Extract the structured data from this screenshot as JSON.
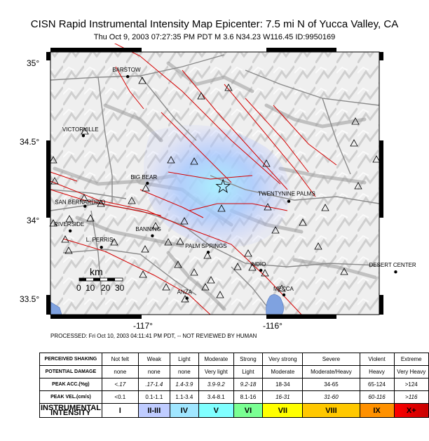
{
  "title": "CISN Rapid Instrumental Intensity Map Epicenter: 7.5 mi N of Yucca Valley, CA",
  "subtitle": "Thu Oct  9, 2003 07:27:35 PM PDT   M 3.6   N34.23 W116.45    ID:9950169",
  "processed": "PROCESSED: Fri Oct 10, 2003 04:11:41 PM PDT, -- NOT REVIEWED BY HUMAN",
  "map": {
    "lat_labels": [
      "35°",
      "34.5°",
      "34°",
      "33.5°"
    ],
    "lon_labels": [
      "-117°",
      "-116°"
    ],
    "cities": [
      {
        "name": "BARSTOW",
        "lon": -117.03,
        "lat": 34.9
      },
      {
        "name": "VICTORVILLE",
        "lon": -117.3,
        "lat": 34.54
      },
      {
        "name": "BIG BEAR",
        "lon": -116.91,
        "lat": 34.25
      },
      {
        "name": "SAN BERNARDINO",
        "lon": -117.29,
        "lat": 34.11
      },
      {
        "name": "TWENTYNINE PALMS",
        "lon": -116.05,
        "lat": 34.14
      },
      {
        "name": "RIVERSIDE",
        "lon": -117.38,
        "lat": 33.96
      },
      {
        "name": "BANNING",
        "lon": -116.88,
        "lat": 33.93
      },
      {
        "name": "L. PERRIS",
        "lon": -117.19,
        "lat": 33.86
      },
      {
        "name": "PALM SPRINGS",
        "lon": -116.54,
        "lat": 33.83
      },
      {
        "name": "INDIO",
        "lon": -116.22,
        "lat": 33.72
      },
      {
        "name": "DESERT CENTER",
        "lon": -115.4,
        "lat": 33.71
      },
      {
        "name": "MECCA",
        "lon": -116.08,
        "lat": 33.57
      },
      {
        "name": "ANZA",
        "lon": -116.67,
        "lat": 33.55
      }
    ],
    "epicenter": {
      "lon": -116.45,
      "lat": 34.23,
      "label": "star"
    },
    "scale": {
      "unit": "km",
      "ticks": [
        "0",
        "10",
        "20",
        "30"
      ]
    }
  },
  "legend": {
    "rows": [
      {
        "key": "perceived",
        "header": "PERCEIVED SHAKING",
        "cells": [
          "Not felt",
          "Weak",
          "Light",
          "Moderate",
          "Strong",
          "Very strong",
          "Severe",
          "Violent",
          "Extreme"
        ]
      },
      {
        "key": "damage",
        "header": "POTENTIAL DAMAGE",
        "cells": [
          "none",
          "none",
          "none",
          "Very light",
          "Light",
          "Moderate",
          "Moderate/Heavy",
          "Heavy",
          "Very Heavy"
        ]
      },
      {
        "key": "acc",
        "header": "PEAK ACC.(%g)",
        "cells": [
          "<.17",
          ".17-1.4",
          "1.4-3.9",
          "3.9-9.2",
          "9.2-18",
          "18-34",
          "34-65",
          "65-124",
          ">124"
        ]
      },
      {
        "key": "vel",
        "header": "PEAK VEL.(cm/s)",
        "cells": [
          "<0.1",
          "0.1-1.1",
          "1.1-3.4",
          "3.4-8.1",
          "8.1-16",
          "16-31",
          "31-60",
          "60-116",
          ">116"
        ]
      },
      {
        "key": "int",
        "header": "INSTRUMENTAL INTENSITY",
        "cells": [
          "I",
          "II-III",
          "IV",
          "V",
          "VI",
          "VII",
          "VIII",
          "IX",
          "X+"
        ]
      }
    ],
    "intensity_colors": [
      "#ffffff",
      "#bfccff",
      "#a0e6ff",
      "#80ffff",
      "#7aff93",
      "#ffff00",
      "#ffc800",
      "#ff9100",
      "#ff0000",
      "#c80000"
    ],
    "italic_cells": {
      "acc": [
        0,
        1,
        2,
        3,
        4
      ],
      "vel": [
        5,
        6,
        7,
        8
      ]
    }
  },
  "colors": {
    "fault": "#d40000",
    "road": "#8a8a8a",
    "water": "#7fa2e0",
    "shaking": "#9fb4ff",
    "frame": "#000000"
  }
}
